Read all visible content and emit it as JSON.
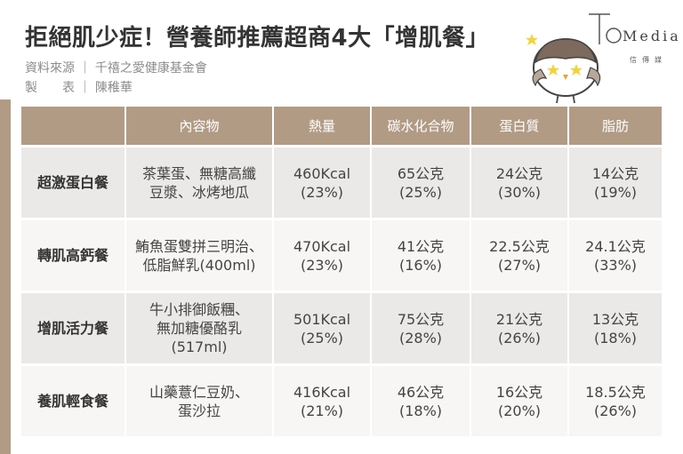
{
  "title": "拒絕肌少症！營養師推薦超商4大「增肌餐」",
  "source": {
    "label1": "資料來源",
    "value1": "千禧之愛健康基金會",
    "label2": "製　　表",
    "value2": "陳稚華",
    "separator": "｜"
  },
  "logo": {
    "brand": "Media",
    "sub": "信傳媒"
  },
  "table": {
    "headers": [
      "",
      "內容物",
      "熱量",
      "碳水化合物",
      "蛋白質",
      "脂肪"
    ],
    "rows": [
      {
        "name": "超激蛋白餐",
        "content": [
          "茶葉蛋、無糖高纖",
          "豆漿、冰烤地瓜"
        ],
        "kcal": [
          "460Kcal",
          "(23%)"
        ],
        "carb": [
          "65公克",
          "(25%)"
        ],
        "protein": [
          "24公克",
          "(30%)"
        ],
        "fat": [
          "14公克",
          "(19%)"
        ]
      },
      {
        "name": "轉肌高鈣餐",
        "content": [
          "鮪魚蛋雙拼三明治、",
          "低脂鮮乳(400ml)"
        ],
        "kcal": [
          "470Kcal",
          "(23%)"
        ],
        "carb": [
          "41公克",
          "(16%)"
        ],
        "protein": [
          "22.5公克",
          "(27%)"
        ],
        "fat": [
          "24.1公克",
          "(33%)"
        ]
      },
      {
        "name": "增肌活力餐",
        "content": [
          "牛小排御飯糰、",
          "無加糖優酪乳",
          "(517ml)"
        ],
        "kcal": [
          "501Kcal",
          "(25%)"
        ],
        "carb": [
          "75公克",
          "(28%)"
        ],
        "protein": [
          "21公克",
          "(26%)"
        ],
        "fat": [
          "13公克",
          "(18%)"
        ]
      },
      {
        "name": "養肌輕食餐",
        "content": [
          "山藥薏仁豆奶、",
          "蛋沙拉"
        ],
        "kcal": [
          "416Kcal",
          "(21%)"
        ],
        "carb": [
          "46公克",
          "(18%)"
        ],
        "protein": [
          "16公克",
          "(20%)"
        ],
        "fat": [
          "18.5公克",
          "(26%)"
        ]
      }
    ]
  },
  "colors": {
    "header": "#b29b85",
    "row_dark": "#ebe9e7",
    "row_light": "#f7f6f5"
  }
}
